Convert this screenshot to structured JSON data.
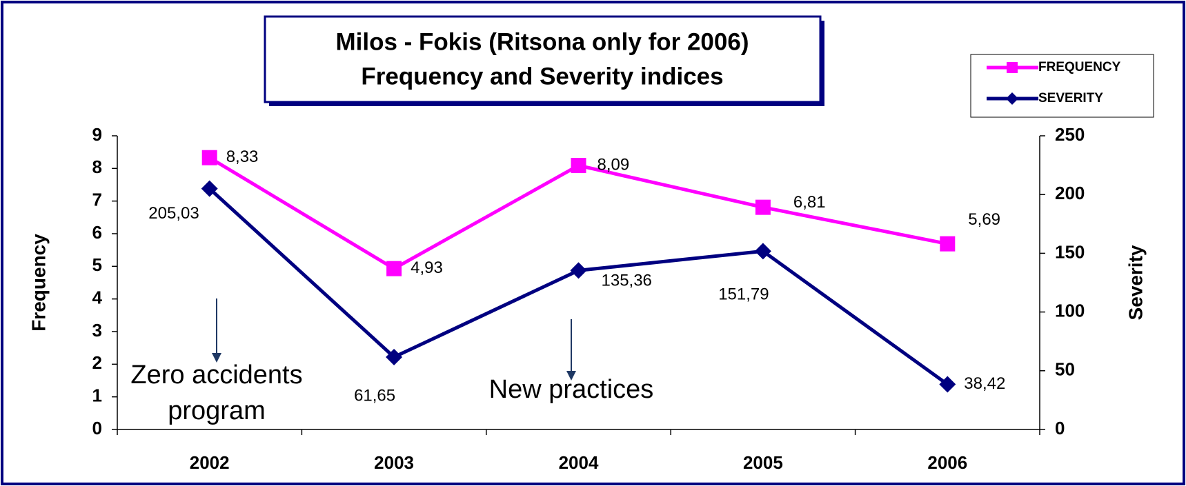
{
  "chart_data": {
    "type": "line",
    "title": [
      "Milos - Fokis (Ritsona only for 2006)",
      "Frequency and Severity indices"
    ],
    "categories": [
      "2002",
      "2003",
      "2004",
      "2005",
      "2006"
    ],
    "series": [
      {
        "name": "FREQUENCY",
        "color": "#ff00ff",
        "marker": "square",
        "values": [
          8.33,
          4.93,
          8.09,
          6.81,
          5.69
        ],
        "value_labels": [
          "8,33",
          "4,93",
          "8,09",
          "6,81",
          "5,69"
        ]
      },
      {
        "name": "SEVERITY",
        "color": "#000080",
        "marker": "diamond",
        "axis": "y2",
        "values": [
          205.03,
          61.65,
          135.36,
          151.79,
          38.42
        ],
        "value_labels": [
          "205,03",
          "61,65",
          "135,36",
          "151,79",
          "38,42"
        ]
      }
    ],
    "y_label": "Frequency",
    "y2_label": "Severity",
    "ylim": [
      0,
      9
    ],
    "yticks": [
      0,
      1,
      2,
      3,
      4,
      5,
      6,
      7,
      8,
      9
    ],
    "y2lim": [
      0,
      250
    ],
    "y2ticks": [
      0,
      50,
      100,
      150,
      200,
      250
    ],
    "annotations": [
      [
        "Zero accidents",
        "program"
      ],
      [
        "New practices"
      ]
    ],
    "legend": "top-right",
    "grid": false
  }
}
